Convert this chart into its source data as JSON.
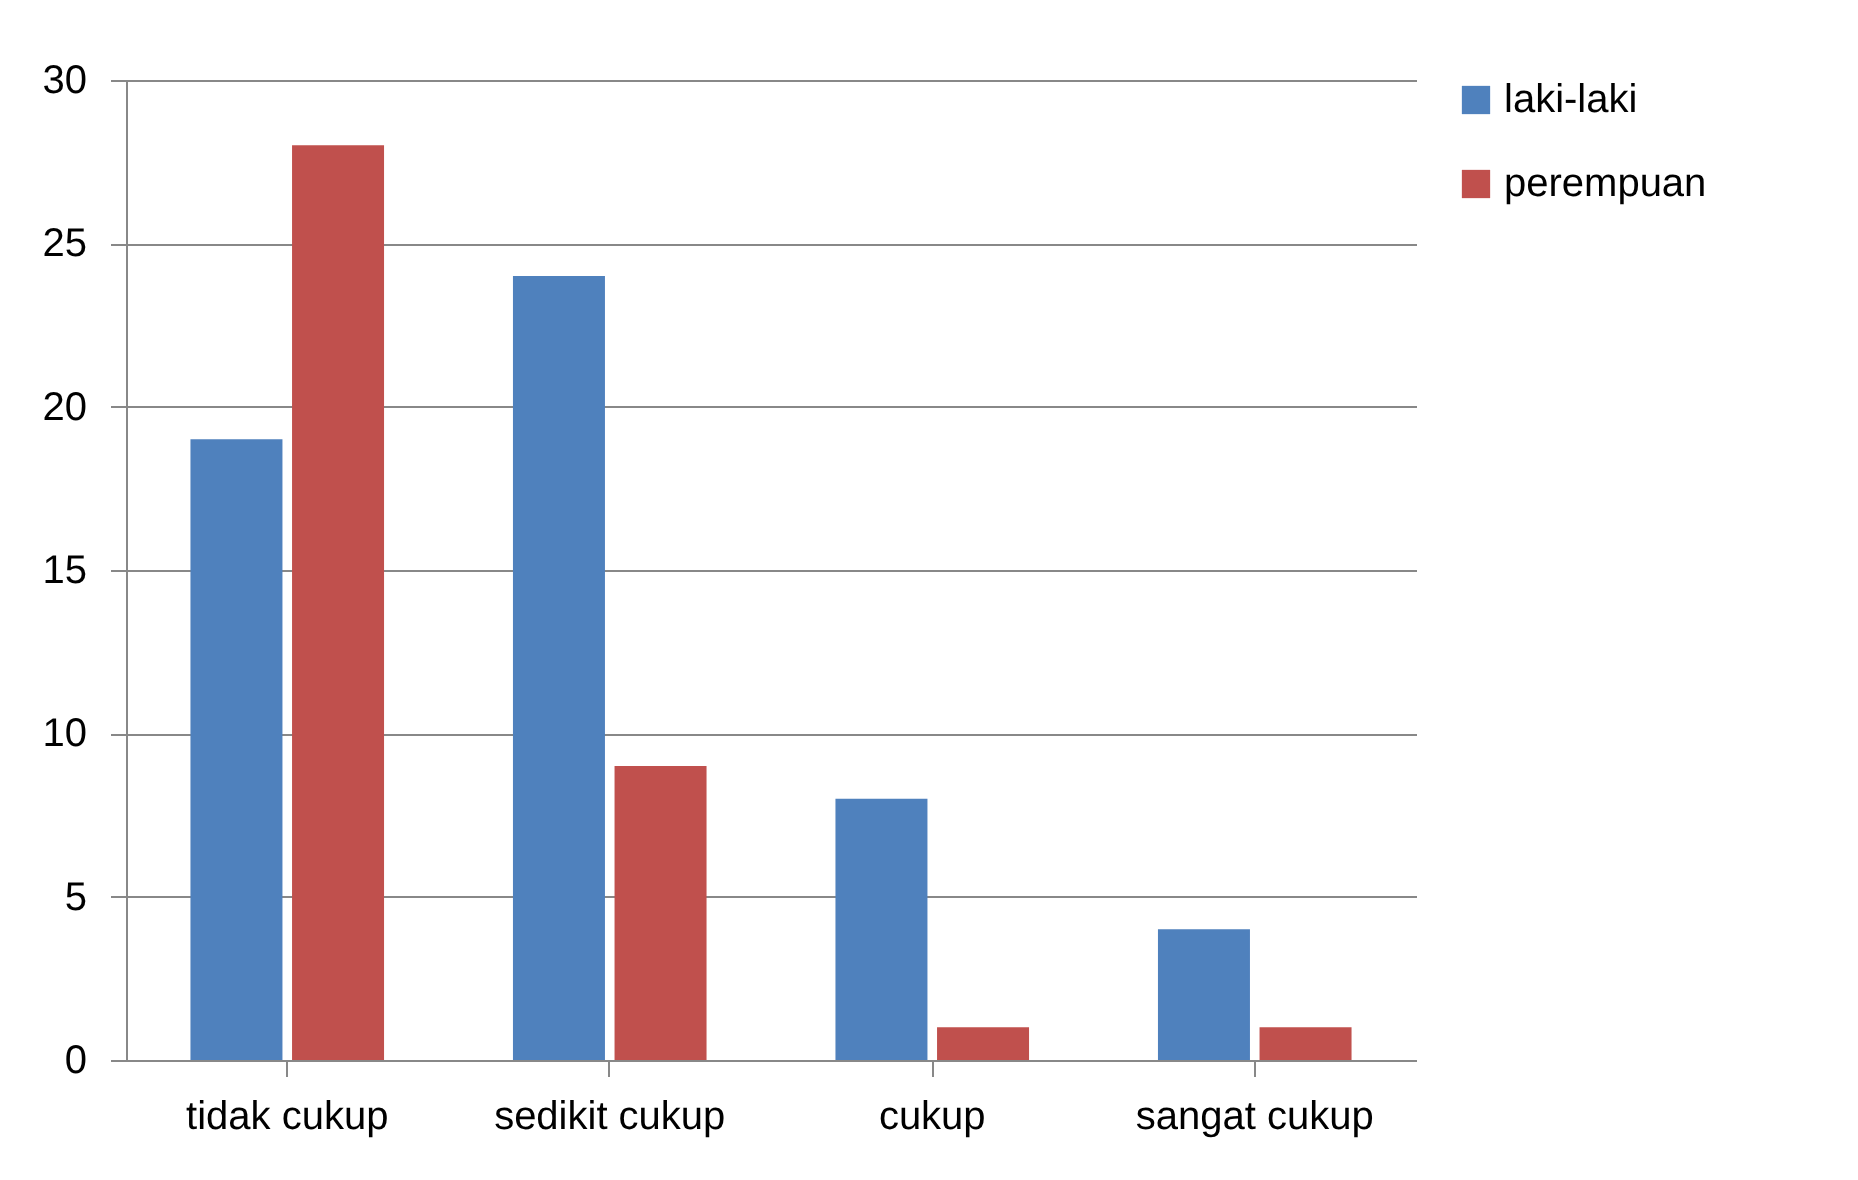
{
  "chart_data": {
    "type": "bar",
    "categories": [
      "tidak cukup",
      "sedikit cukup",
      "cukup",
      "sangat cukup"
    ],
    "series": [
      {
        "name": "laki-laki",
        "color": "#4f81bd",
        "values": [
          19,
          24,
          8,
          4
        ]
      },
      {
        "name": "perempuan",
        "color": "#c0504d",
        "values": [
          28,
          9,
          1,
          1
        ]
      }
    ],
    "ylim": [
      0,
      30
    ],
    "yticks": [
      0,
      5,
      10,
      15,
      20,
      25,
      30
    ],
    "grid": "y",
    "legend": "right"
  }
}
